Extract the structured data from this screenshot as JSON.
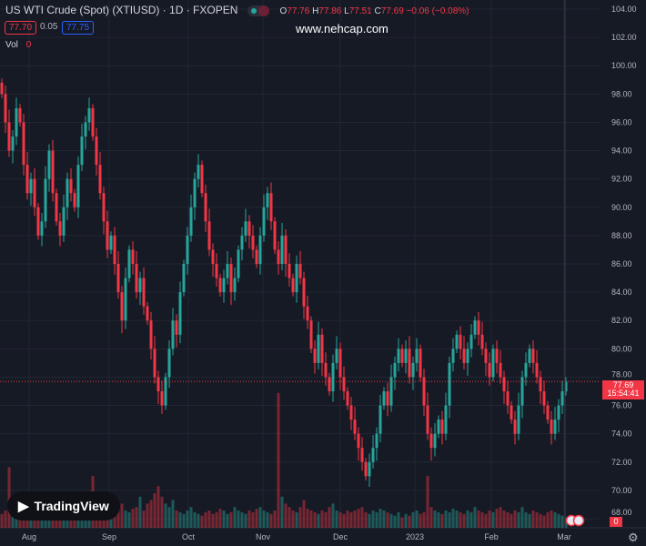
{
  "header": {
    "title": "US WTI Crude (Spot) (XTIUSD) · 1D · FXOPEN",
    "o_label": "O",
    "o": "77.76",
    "h_label": "H",
    "h": "77.86",
    "l_label": "L",
    "l": "77.51",
    "c_label": "C",
    "c": "77.69",
    "change": "−0.06 (−0.08%)",
    "bid": "77.70",
    "spread": "0.05",
    "ask": "77.75",
    "vol_label": "Vol",
    "vol_value": "0"
  },
  "watermark": "www.nehcap.com",
  "logo": "TradingView",
  "price_tag": {
    "price": "77.69",
    "countdown": "15:54:41"
  },
  "vol_tag": "0",
  "colors": {
    "up": "#26a69a",
    "down": "#f23645",
    "bg": "#161a25"
  },
  "chart_data": {
    "type": "candlestick",
    "ylim": [
      68,
      104
    ],
    "y_ticks": [
      "104.00",
      "102.00",
      "100.00",
      "98.00",
      "96.00",
      "94.00",
      "92.00",
      "90.00",
      "88.00",
      "86.00",
      "84.00",
      "82.00",
      "80.00",
      "78.00",
      "76.00",
      "74.00",
      "72.00",
      "70.00",
      "68.00"
    ],
    "x_ticks": [
      "Aug",
      "Sep",
      "Oct",
      "Nov",
      "Dec",
      "2023",
      "Feb",
      "Mar"
    ],
    "closes": [
      98,
      96,
      94,
      95,
      97,
      96,
      93,
      91,
      92,
      90,
      88,
      89,
      92,
      94,
      91,
      89,
      88,
      90,
      92,
      91,
      90,
      93,
      95,
      96,
      97,
      95,
      93,
      91,
      89,
      87,
      88,
      86,
      84,
      82,
      85,
      87,
      86,
      84,
      85,
      83,
      82,
      80,
      78,
      77,
      76,
      78,
      80,
      82,
      81,
      84,
      86,
      88,
      90,
      92,
      93,
      91,
      89,
      87,
      86,
      85,
      84,
      85,
      86,
      84,
      85,
      87,
      88,
      89,
      88,
      87,
      86,
      88,
      90,
      91,
      89,
      87,
      86,
      88,
      86,
      85,
      84,
      86,
      85,
      83,
      82,
      80,
      79,
      81,
      79,
      78,
      77,
      79,
      80,
      78,
      77,
      76,
      75,
      74,
      73,
      72,
      71,
      72,
      73,
      74,
      76,
      77,
      76,
      78,
      79,
      80,
      79,
      80,
      78,
      79,
      80,
      78,
      76,
      74,
      73,
      74,
      75,
      74,
      76,
      79,
      80,
      81,
      80,
      79,
      80,
      81,
      82,
      81,
      80,
      79,
      78,
      80,
      79,
      78,
      77,
      76,
      75,
      74,
      76,
      78,
      79,
      80,
      79,
      78,
      77,
      76,
      75,
      74,
      75,
      76,
      77,
      77.69
    ],
    "volumes": [
      8,
      10,
      35,
      12,
      9,
      8,
      7,
      9,
      10,
      8,
      9,
      10,
      11,
      9,
      8,
      10,
      9,
      8,
      10,
      12,
      9,
      11,
      10,
      9,
      12,
      30,
      14,
      10,
      9,
      8,
      10,
      9,
      12,
      14,
      10,
      9,
      11,
      12,
      18,
      10,
      14,
      16,
      20,
      24,
      18,
      14,
      12,
      16,
      10,
      9,
      8,
      10,
      12,
      9,
      8,
      7,
      9,
      10,
      8,
      9,
      11,
      10,
      8,
      9,
      12,
      10,
      9,
      8,
      10,
      9,
      11,
      12,
      10,
      9,
      8,
      10,
      78,
      18,
      14,
      12,
      10,
      9,
      12,
      16,
      11,
      10,
      9,
      8,
      10,
      9,
      12,
      14,
      10,
      9,
      8,
      10,
      9,
      10,
      11,
      12,
      9,
      8,
      10,
      9,
      11,
      10,
      9,
      8,
      7,
      9,
      6,
      8,
      7,
      9,
      10,
      8,
      9,
      30,
      12,
      10,
      9,
      8,
      10,
      9,
      11,
      10,
      9,
      8,
      10,
      9,
      12,
      10,
      9,
      8,
      10,
      9,
      11,
      12,
      10,
      9,
      8,
      10,
      9,
      12,
      9,
      8,
      10,
      9,
      8,
      7,
      9,
      10,
      9,
      8,
      7,
      6
    ]
  }
}
